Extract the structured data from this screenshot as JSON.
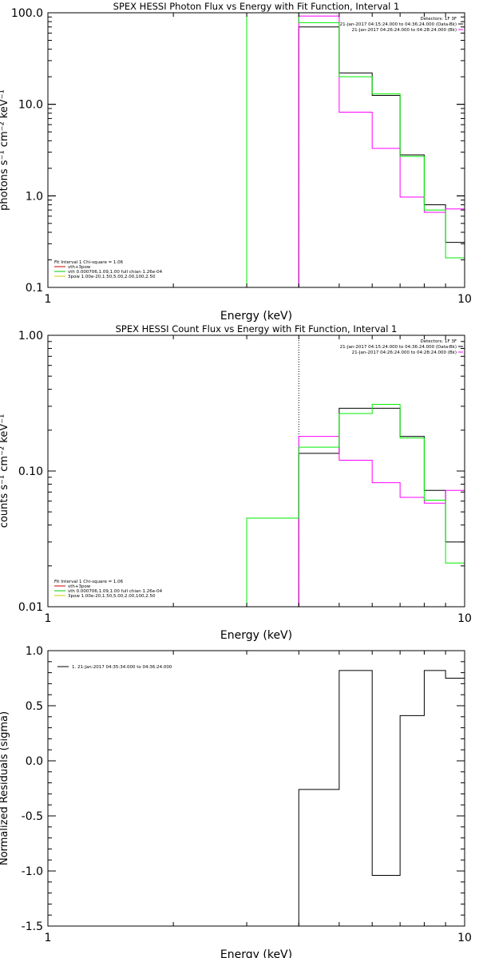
{
  "chart_data": [
    {
      "type": "line",
      "title": "SPEX HESSI Photon Flux vs Energy with Fit Function, Interval 1",
      "xlabel": "Energy (keV)",
      "ylabel": "photons s⁻¹ cm⁻² keV⁻¹",
      "xscale": "log",
      "yscale": "log",
      "xlim": [
        1,
        10
      ],
      "ylim": [
        0.1,
        100
      ],
      "x_ticks": [
        "1",
        "10"
      ],
      "y_ticks": [
        "0.1",
        "1.0",
        "10.0",
        "100.0"
      ],
      "header": [
        "Detectors: 1F 3F",
        "21-Jan-2017 04:15:24.000 to 04:36:24.000 (Data-Bk)",
        "21-Jan-2017 04:26:24.000 to 04:28:24.000 (Bk)"
      ],
      "legend": {
        "fit_line": "Fit Interval 1    Chi-square = 1.06",
        "items": [
          {
            "name": "vth+3pow",
            "color": "#cc0000"
          },
          {
            "name": "vth 0.000706,1.09,1.00   full chian 1.26e-04",
            "color": "#00cc00"
          },
          {
            "name": "3pow 1.00e-20,1.50,5.00,2.00,100,2.50",
            "color": "#cccc00"
          }
        ]
      },
      "dotted_x": 4,
      "series": [
        {
          "color": "#000000",
          "edges": [
            4,
            5,
            6,
            7,
            8,
            9,
            10
          ],
          "values": [
            70,
            22,
            12.5,
            2.8,
            0.8,
            0.31
          ]
        },
        {
          "color": "#ff00ff",
          "edges": [
            4,
            5,
            6,
            7,
            8,
            9,
            10
          ],
          "values": [
            92,
            8.2,
            3.3,
            0.97,
            0.66,
            0.72
          ]
        },
        {
          "color": "#00ee00",
          "edges": [
            3,
            4,
            5,
            6,
            7,
            8,
            9,
            10
          ],
          "values": [
            150,
            78,
            20,
            13,
            2.7,
            0.7,
            0.21
          ]
        }
      ]
    },
    {
      "type": "line",
      "title": "SPEX HESSI Count Flux vs Energy with Fit Function, Interval 1",
      "xlabel": "Energy (keV)",
      "ylabel": "counts s⁻¹ cm⁻² keV⁻¹",
      "xscale": "log",
      "yscale": "log",
      "xlim": [
        1,
        10
      ],
      "ylim": [
        0.01,
        1
      ],
      "x_ticks": [
        "1",
        "10"
      ],
      "y_ticks": [
        "0.01",
        "0.10",
        "1.00"
      ],
      "header": [
        "Detectors: 1F 3F",
        "21-Jan-2017 04:15:24.000 to 04:36:24.000 (Data-Bk)",
        "21-Jan-2017 04:26:24.000 to 04:28:24.000 (Bk)"
      ],
      "legend": {
        "fit_line": "Fit Interval 1    Chi-square = 1.06",
        "items": [
          {
            "name": "vth+3pow",
            "color": "#cc0000"
          },
          {
            "name": "vth 0.000706,1.09,1.00   full chian 1.26e-04",
            "color": "#00cc00"
          },
          {
            "name": "3pow 1.00e-20,1.50,5.00,2.00,100,2.50",
            "color": "#cccc00"
          }
        ]
      },
      "dotted_x": 4,
      "series": [
        {
          "color": "#000000",
          "edges": [
            4,
            5,
            6,
            7,
            8,
            9,
            10
          ],
          "values": [
            0.135,
            0.29,
            0.29,
            0.18,
            0.072,
            0.03
          ]
        },
        {
          "color": "#ff00ff",
          "edges": [
            4,
            5,
            6,
            7,
            8,
            9,
            10
          ],
          "values": [
            0.18,
            0.12,
            0.082,
            0.064,
            0.058,
            0.072
          ]
        },
        {
          "color": "#00ee00",
          "edges": [
            3,
            4,
            5,
            6,
            7,
            8,
            9,
            10
          ],
          "values": [
            0.045,
            0.15,
            0.265,
            0.31,
            0.175,
            0.061,
            0.021
          ]
        }
      ]
    },
    {
      "type": "line",
      "title": "",
      "xlabel": "Energy (keV)",
      "ylabel": "Normalized Residuals (sigma)",
      "xscale": "log",
      "yscale": "linear",
      "xlim": [
        1,
        10
      ],
      "ylim": [
        -1.5,
        1.0
      ],
      "x_ticks": [
        "1",
        "10"
      ],
      "y_ticks": [
        "-1.5",
        "-1.0",
        "-0.5",
        "0.0",
        "0.5",
        "1.0"
      ],
      "legend": {
        "items": [
          {
            "name": "1. 21-Jan-2017 04:35:34.000 to 04:36:24.000",
            "color": "#000000"
          }
        ]
      },
      "series": [
        {
          "color": "#000000",
          "edges": [
            4,
            5,
            6,
            7,
            8,
            9,
            10
          ],
          "values": [
            -0.26,
            0.82,
            -1.04,
            0.41,
            0.82,
            0.75
          ]
        }
      ]
    }
  ]
}
